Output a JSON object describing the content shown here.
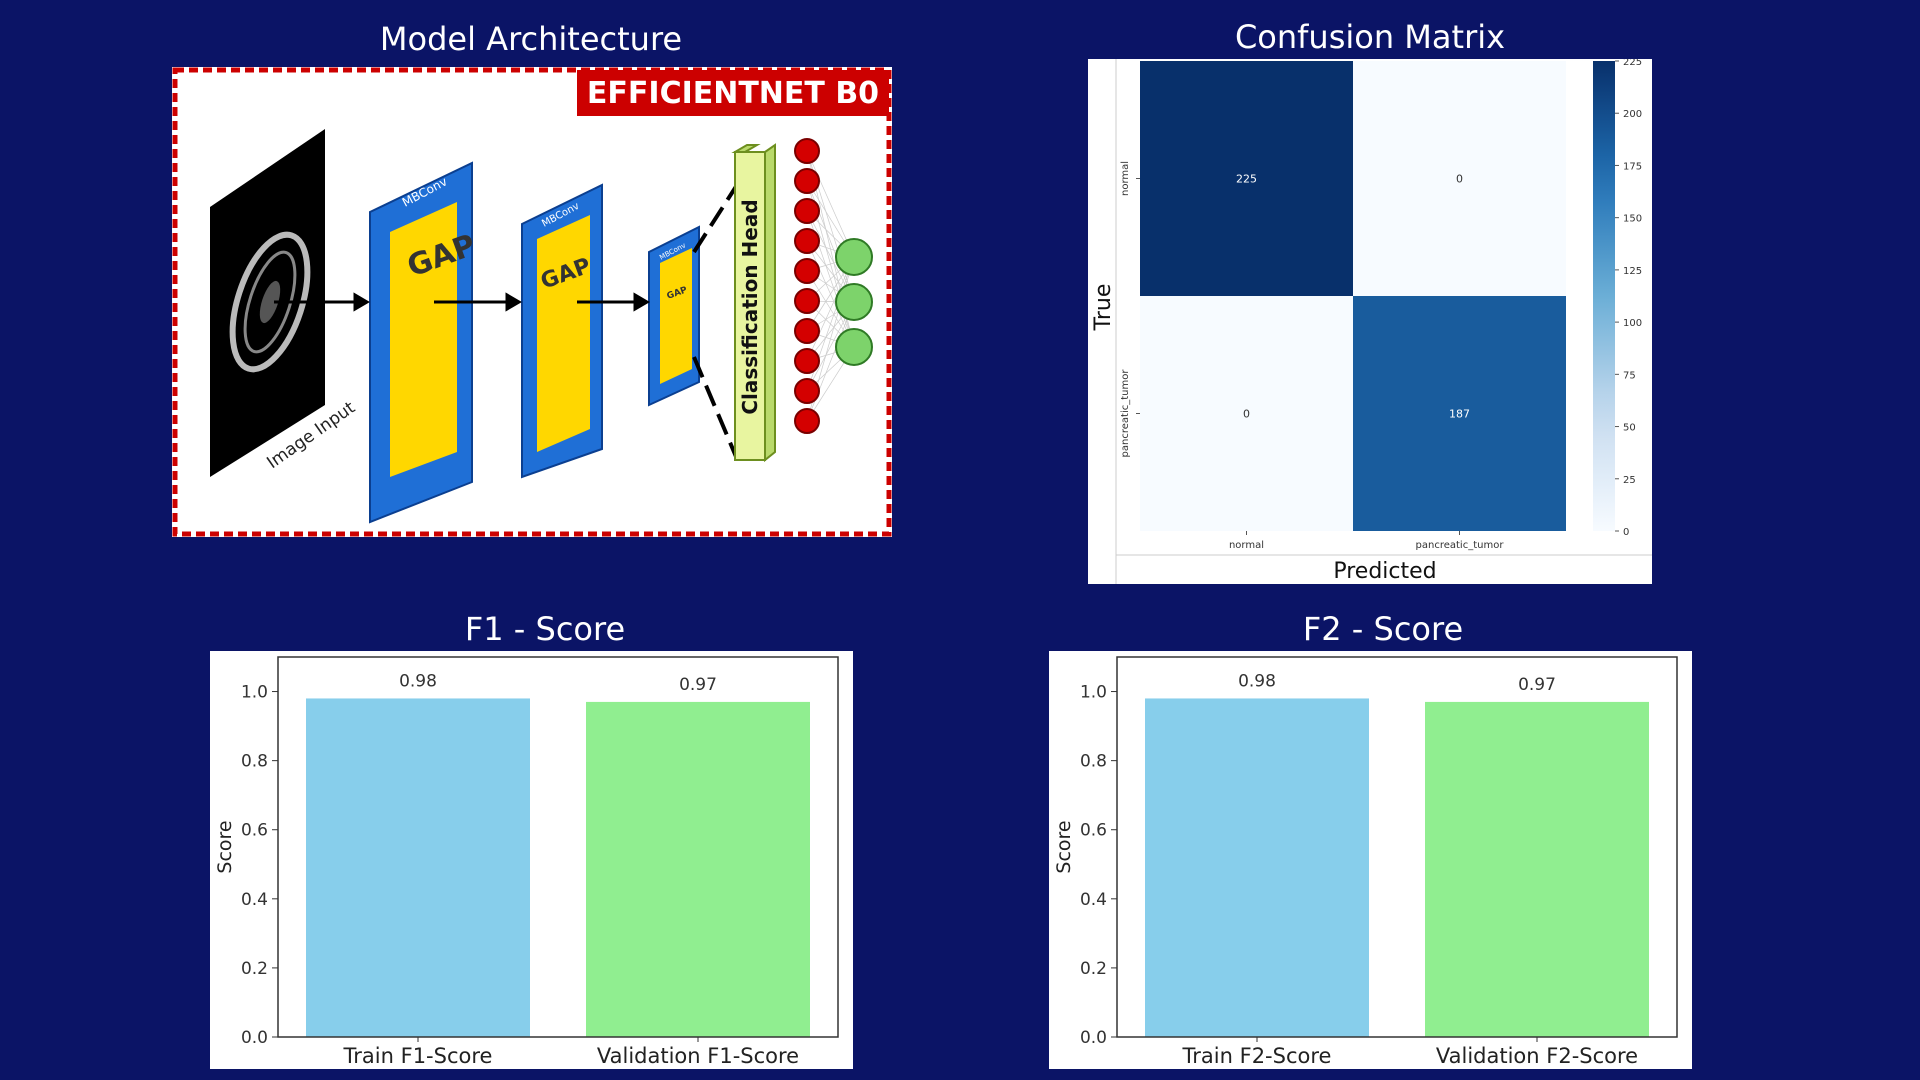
{
  "titles": {
    "architecture": "Model Architecture",
    "confusion": "Confusion Matrix",
    "f1": "F1 - Score",
    "f2": "F2 - Score"
  },
  "architecture": {
    "banner": "EFFICIENTNET B0",
    "input_label": "Image Input",
    "block_label": "MBConv",
    "pool_label": "GAP",
    "head_label": "Classification Head",
    "accent_color": "#cc0000"
  },
  "chart_data": [
    {
      "type": "heatmap",
      "title": "Confusion Matrix",
      "xlabel": "Predicted",
      "ylabel": "True",
      "x_categories": [
        "normal",
        "pancreatic_tumor"
      ],
      "y_categories": [
        "normal",
        "pancreatic_tumor"
      ],
      "values": [
        [
          225,
          0
        ],
        [
          0,
          187
        ]
      ],
      "colorbar": {
        "min": 0,
        "max": 225,
        "ticks": [
          0,
          25,
          50,
          75,
          100,
          125,
          150,
          175,
          200,
          225
        ]
      },
      "colormap": "Blues"
    },
    {
      "type": "bar",
      "title": "F1 - Score",
      "categories": [
        "Train F1-Score",
        "Validation F1-Score"
      ],
      "values": [
        0.98,
        0.97
      ],
      "value_labels": [
        "0.98",
        "0.97"
      ],
      "colors": [
        "#87ceeb",
        "#90ee90"
      ],
      "xlabel": "",
      "ylabel": "Score",
      "ylim": [
        0,
        1.1
      ],
      "yticks": [
        "0.0",
        "0.2",
        "0.4",
        "0.6",
        "0.8",
        "1.0"
      ]
    },
    {
      "type": "bar",
      "title": "F2 - Score",
      "categories": [
        "Train F2-Score",
        "Validation F2-Score"
      ],
      "values": [
        0.98,
        0.97
      ],
      "value_labels": [
        "0.98",
        "0.97"
      ],
      "colors": [
        "#87ceeb",
        "#90ee90"
      ],
      "xlabel": "",
      "ylabel": "Score",
      "ylim": [
        0,
        1.1
      ],
      "yticks": [
        "0.0",
        "0.2",
        "0.4",
        "0.6",
        "0.8",
        "1.0"
      ]
    }
  ]
}
